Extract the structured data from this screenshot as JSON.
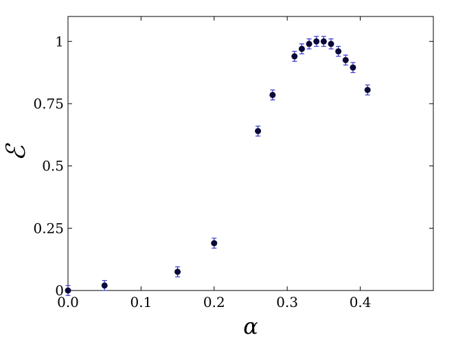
{
  "chart_data": {
    "type": "scatter",
    "title": "",
    "xlabel": "α",
    "ylabel": "ℰ",
    "xlim": [
      0,
      0.5
    ],
    "ylim": [
      0,
      1.1
    ],
    "grid": false,
    "x_ticks": [
      0.0,
      0.1,
      0.2,
      0.3,
      0.4
    ],
    "x_tick_labels": [
      "0.0",
      "0.1",
      "0.2",
      "0.3",
      "0.4"
    ],
    "y_ticks": [
      0,
      0.25,
      0.5,
      0.75,
      1
    ],
    "y_tick_labels": [
      "0",
      "0.25",
      "0.5",
      "0.75",
      "1"
    ],
    "marker_color": "#0a0a3a",
    "errorbar_color": "#3333cc",
    "series": [
      {
        "x": [
          0.0,
          0.05,
          0.15,
          0.2,
          0.26,
          0.28,
          0.31,
          0.32,
          0.33,
          0.34,
          0.35,
          0.36,
          0.37,
          0.38,
          0.39,
          0.41
        ],
        "y": [
          0.0,
          0.02,
          0.075,
          0.19,
          0.64,
          0.785,
          0.94,
          0.97,
          0.99,
          1.0,
          1.0,
          0.99,
          0.96,
          0.925,
          0.895,
          0.805
        ],
        "err": [
          0.02,
          0.02,
          0.02,
          0.02,
          0.02,
          0.02,
          0.02,
          0.02,
          0.02,
          0.02,
          0.02,
          0.02,
          0.02,
          0.02,
          0.02,
          0.02
        ]
      }
    ]
  }
}
